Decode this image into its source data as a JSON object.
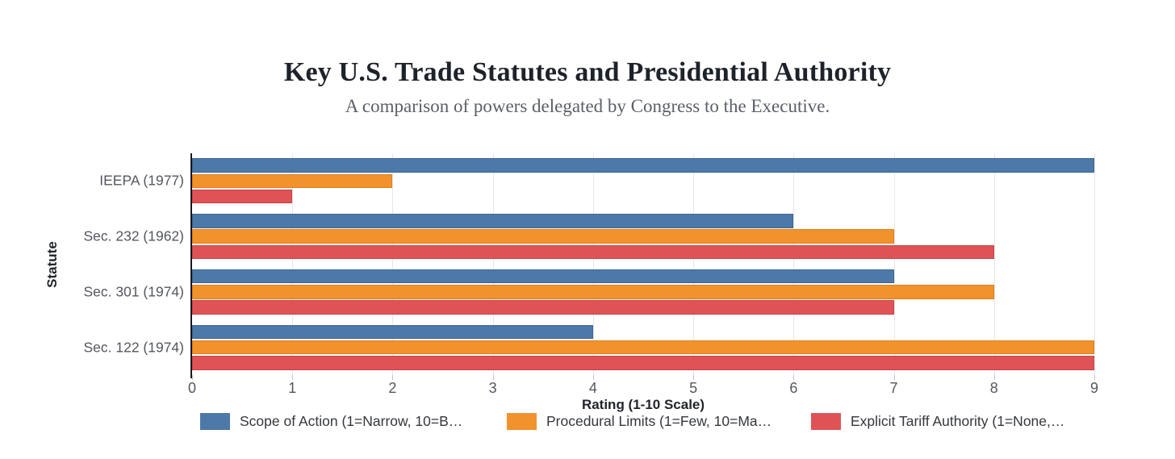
{
  "chart_data": {
    "type": "bar",
    "orientation": "horizontal",
    "title": "Key U.S. Trade Statutes and Presidential Authority",
    "subtitle": "A comparison of powers delegated by Congress to the Executive.",
    "xlabel": "Rating (1-10 Scale)",
    "ylabel": "Statute",
    "xlim": [
      0,
      9
    ],
    "xticks": [
      "0",
      "1",
      "2",
      "3",
      "4",
      "5",
      "6",
      "7",
      "8",
      "9"
    ],
    "grid": true,
    "legend_position": "bottom",
    "background_color": "#ffffff",
    "gridline_color": "#e7e7e7",
    "axis_line_color": "#16191f",
    "categories": [
      "IEEPA (1977)",
      "Sec. 232 (1962)",
      "Sec. 301 (1974)",
      "Sec. 122 (1974)"
    ],
    "series": [
      {
        "name": "Scope of Action (1=Narrow, 10=B…",
        "color": "#4d79a8",
        "border_color": "#3a6598",
        "values": [
          9,
          6,
          7,
          4
        ]
      },
      {
        "name": "Procedural Limits (1=Few, 10=Ma…",
        "color": "#f2922d",
        "border_color": "#dd7e17",
        "values": [
          2,
          7,
          8,
          9
        ]
      },
      {
        "name": "Explicit Tariff Authority (1=None,…",
        "color": "#df5356",
        "border_color": "#ca4346",
        "values": [
          1,
          8,
          7,
          9
        ]
      }
    ]
  }
}
